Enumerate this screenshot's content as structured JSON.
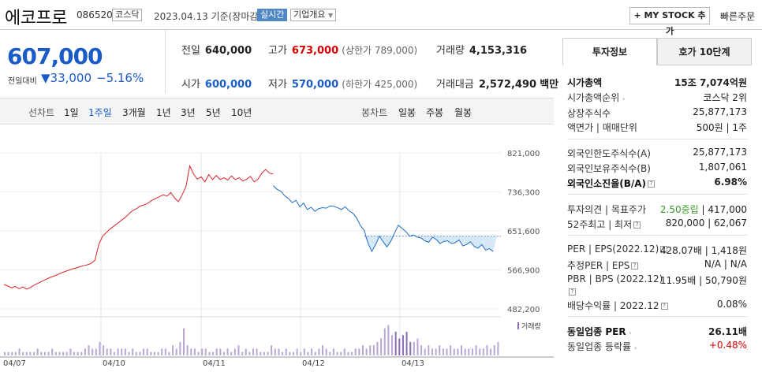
{
  "header": {
    "name": "에코프로",
    "code": "086520",
    "market": "코스닥",
    "date": "2023.04.13",
    "basis": "기준(장마감)",
    "realtime": "실시간",
    "company_info": "기업개요",
    "mystock": "+ MY STOCK 추가",
    "quick_order": "빠른주문"
  },
  "price": {
    "current": "607,000",
    "change_label": "전일대비",
    "change": "▼33,000",
    "change_pct": "−5.16%"
  },
  "stats": {
    "prev_label": "전일",
    "prev": "640,000",
    "high_label": "고가",
    "high": "673,000",
    "upper_limit": "(상한가 789,000)",
    "volume_label": "거래량",
    "volume": "4,153,316",
    "open_label": "시가",
    "open": "600,000",
    "low_label": "저가",
    "low": "570,000",
    "lower_limit": "(하한가 425,000)",
    "amount_label": "거래대금",
    "amount": "2,572,490",
    "amount_unit": "백만"
  },
  "chart_tabs": {
    "line_label": "선차트",
    "periods": [
      "1일",
      "1주일",
      "3개월",
      "1년",
      "3년",
      "5년",
      "10년"
    ],
    "selected": "1주일",
    "candle_label": "봉차트",
    "candles": [
      "일봉",
      "주봉",
      "월봉"
    ]
  },
  "chart_data": {
    "type": "line",
    "title": "",
    "x_labels": [
      "04/07",
      "04/10",
      "04/11",
      "04/12",
      "04/13"
    ],
    "y_ticks": [
      "821,000",
      "736,300",
      "651,600",
      "566,900",
      "482,200"
    ],
    "ylim": [
      482200,
      821000
    ],
    "prev_close": 640000,
    "volume_label": "거래량",
    "colors": {
      "up": "#d9262d",
      "down": "#1f6cc4",
      "fill": "#d6e8f6"
    },
    "series": [
      {
        "values": [
          535000,
          532000,
          528000,
          531000,
          526000,
          530000,
          525000,
          529000,
          534000,
          538000,
          542000,
          546000,
          550000,
          553000,
          556000,
          560000,
          563000,
          566000,
          569000,
          571000,
          574000,
          576000,
          578000,
          581000,
          588000,
          622000,
          640000,
          648000,
          656000,
          662000,
          668000,
          675000,
          681000,
          689000,
          696000,
          700000,
          706000,
          708000,
          712000,
          718000,
          722000,
          726000,
          730000,
          727000,
          735000,
          723000,
          715000,
          730000,
          748000,
          793000,
          775000,
          764000,
          769000,
          758000,
          774000,
          763000,
          772000,
          763000,
          767000,
          762000,
          771000,
          763000,
          767000,
          760000,
          764000,
          770000,
          758000,
          764000,
          777000,
          785000,
          777000,
          775000
        ]
      },
      {
        "values": [
          750000,
          742000,
          738000,
          728000,
          722000,
          713000,
          718000,
          704000,
          712000,
          698000,
          703000,
          694000,
          700000,
          702000,
          701000,
          706000,
          705000,
          702000,
          698000,
          704000,
          695000,
          690000,
          680000,
          663000,
          653000,
          625000,
          607000,
          622000,
          640000,
          628000,
          617000,
          629000,
          647000,
          664000,
          657000,
          650000,
          640000,
          643000,
          638000,
          636000,
          630000,
          627000,
          638000,
          633000,
          624000,
          629000,
          630000,
          624000,
          626000,
          632000,
          619000,
          622000,
          628000,
          618000,
          614000,
          622000,
          610000,
          613000,
          607000
        ]
      }
    ],
    "volume": [
      1,
      1,
      1,
      1,
      2,
      1,
      1,
      1,
      1,
      2,
      1,
      1,
      1,
      2,
      1,
      1,
      1,
      1,
      2,
      1,
      1,
      1,
      2,
      3,
      2,
      2,
      4,
      3,
      2,
      2,
      1,
      2,
      2,
      2,
      1,
      2,
      1,
      1,
      2,
      2,
      1,
      1,
      1,
      2,
      2,
      1,
      3,
      2,
      4,
      8,
      3,
      2,
      2,
      1,
      2,
      2,
      1,
      1,
      2,
      2,
      1,
      2,
      1,
      2,
      3,
      1,
      2,
      1,
      2,
      2,
      1,
      1,
      1,
      3,
      2,
      2,
      1,
      2,
      1,
      1,
      2,
      1,
      2,
      1,
      2,
      1,
      2,
      3,
      2,
      1,
      2,
      1,
      1,
      2,
      1,
      1,
      2,
      2,
      3,
      2,
      3,
      3,
      4,
      5,
      8,
      9,
      6,
      7,
      5,
      6,
      7,
      4,
      4,
      5,
      3,
      2,
      3,
      2,
      2,
      3,
      2,
      2,
      3,
      2,
      2,
      3,
      2,
      2,
      2,
      3,
      2,
      2,
      3,
      2,
      3,
      4
    ]
  },
  "sidebar": {
    "tab_invest": "투자정보",
    "tab_hoga": "호가 10단계",
    "mcap_label": "시가총액",
    "mcap": "15조 7,074억원",
    "mcap_rank_label": "시가총액순위",
    "mcap_rank": "코스닥 2위",
    "shares_label": "상장주식수",
    "shares": "25,877,173",
    "par_label": "액면가 | 매매단위",
    "par": "500원 | 1주",
    "foreign_limit_label": "외국인한도주식수(A)",
    "foreign_limit": "25,877,173",
    "foreign_hold_label": "외국인보유주식수(B)",
    "foreign_hold": "1,807,061",
    "foreign_ratio_label": "외국인소진율(B/A)",
    "foreign_ratio": "6.98%",
    "opinion_label": "투자의견 | 목표주가",
    "opinion": "2.50중립",
    "target": "| 417,000",
    "w52_label": "52주최고 | 최저",
    "w52": "820,000 | 62,067",
    "per_label": "PER | EPS(2022.12)",
    "per": "428.07배 | 1,418원",
    "est_label": "추정PER | EPS",
    "est": "N/A | N/A",
    "pbr_label": "PBR | BPS (2022.12)",
    "pbr": "11.95배 | 50,790원",
    "div_label": "배당수익률 | 2022.12",
    "div": "0.08%",
    "sector_per_label": "동일업종 PER",
    "sector_per": "26.11배",
    "sector_rate_label": "동일업종 등락률",
    "sector_rate": "+0.48%"
  }
}
